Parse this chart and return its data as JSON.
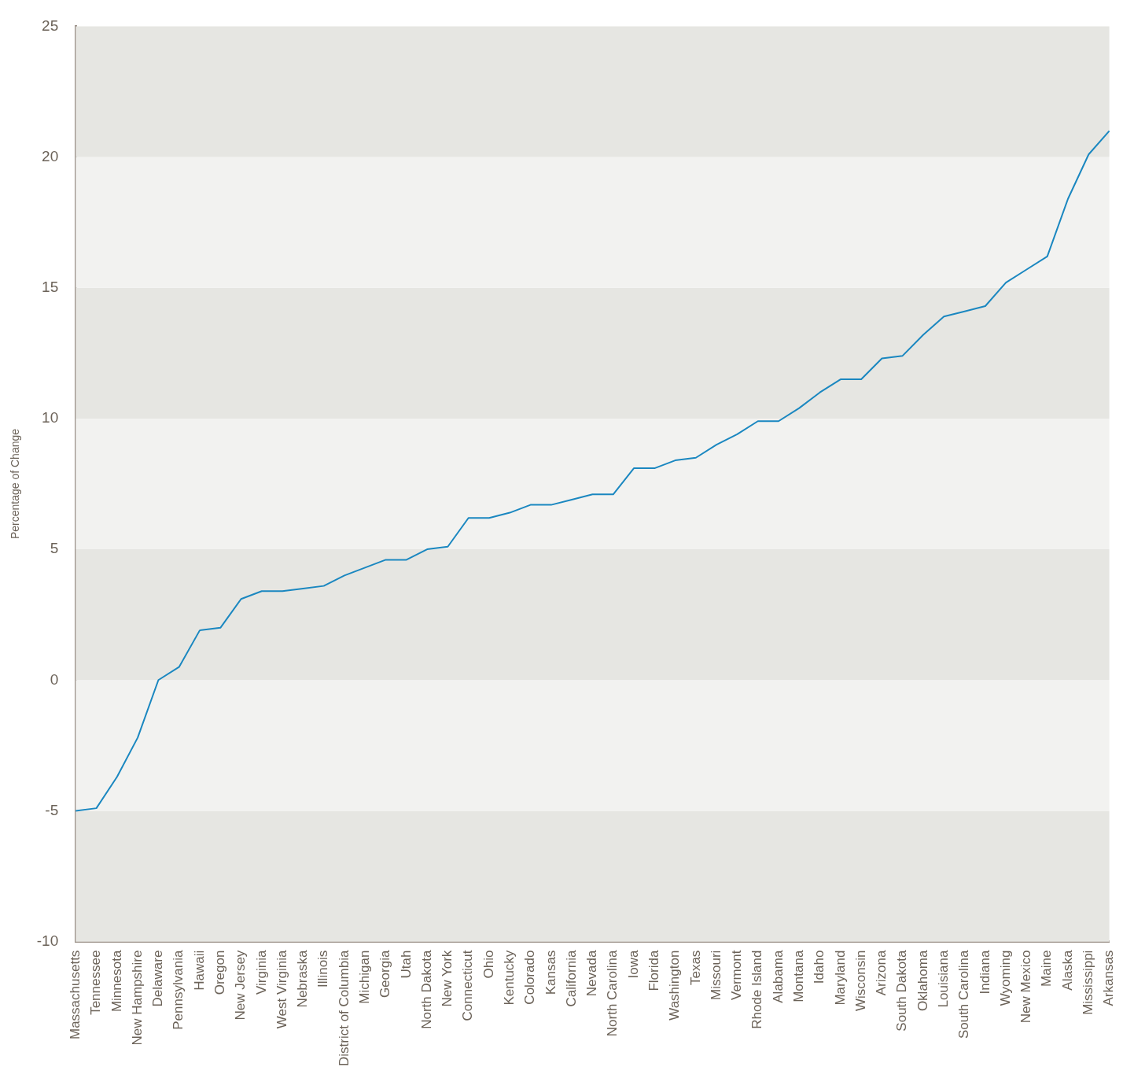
{
  "chart_data": {
    "type": "line",
    "ylabel": "Percentage of Change",
    "categories": [
      "Massachusetts",
      "Tennessee",
      "Minnesota",
      "New Hampshire",
      "Delaware",
      "Pennsylvania",
      "Hawaii",
      "Oregon",
      "New Jersey",
      "Virginia",
      "West Virginia",
      "Nebraska",
      "Illinois",
      "District of Columbia",
      "Michigan",
      "Georgia",
      "Utah",
      "North Dakota",
      "New York",
      "Connecticut",
      "Ohio",
      "Kentucky",
      "Colorado",
      "Kansas",
      "California",
      "Nevada",
      "North Carolina",
      "Iowa",
      "Florida",
      "Washington",
      "Texas",
      "Missouri",
      "Vermont",
      "Rhode Island",
      "Alabama",
      "Montana",
      "Idaho",
      "Maryland",
      "Wisconsin",
      "Arizona",
      "South Dakota",
      "Oklahoma",
      "Louisiana",
      "South Carolina",
      "Indiana",
      "Wyoming",
      "New Mexico",
      "Maine",
      "Alaska",
      "Mississippi",
      "Arkansas"
    ],
    "series": [
      {
        "color": "#1a87c0",
        "values": [
          -5.0,
          -4.9,
          -3.7,
          -2.2,
          0.0,
          0.5,
          1.9,
          2.0,
          3.1,
          3.4,
          3.4,
          3.5,
          3.6,
          4.0,
          4.3,
          4.6,
          4.6,
          5.0,
          5.1,
          6.2,
          6.2,
          6.4,
          6.7,
          6.7,
          6.9,
          7.1,
          7.1,
          8.1,
          8.1,
          8.4,
          8.5,
          9.0,
          9.4,
          9.9,
          9.9,
          10.4,
          11.0,
          11.5,
          11.5,
          12.3,
          12.4,
          13.2,
          13.9,
          14.1,
          14.3,
          15.2,
          15.7,
          16.2,
          18.4,
          20.1,
          21.0
        ]
      }
    ],
    "ylim": [
      -10,
      25
    ],
    "yticks": [
      -10,
      -5,
      0,
      5,
      10,
      15,
      20,
      25
    ],
    "bands": [
      {
        "axis": "y",
        "from": -10,
        "to": -5,
        "color": "#e6e6e2"
      },
      {
        "axis": "y",
        "from": -5,
        "to": 0,
        "color": "#f2f2f0"
      },
      {
        "axis": "y",
        "from": 0,
        "to": 5,
        "color": "#e6e6e2"
      },
      {
        "axis": "y",
        "from": 5,
        "to": 10,
        "color": "#f2f2f0"
      },
      {
        "axis": "y",
        "from": 10,
        "to": 15,
        "color": "#e6e6e2"
      },
      {
        "axis": "y",
        "from": 15,
        "to": 20,
        "color": "#f2f2f0"
      },
      {
        "axis": "y",
        "from": 20,
        "to": 25,
        "color": "#e6e6e2"
      }
    ],
    "grid": false,
    "legend": false,
    "marker": "none",
    "line_style": "solid"
  }
}
